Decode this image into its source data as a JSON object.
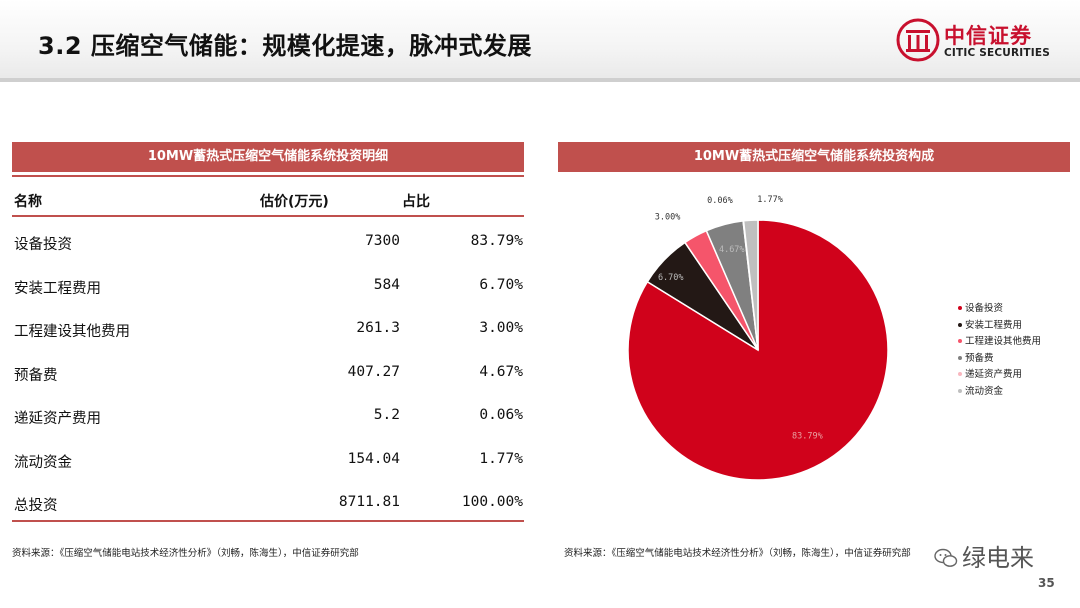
{
  "header": {
    "title": "3.2 压缩空气储能：规模化提速，脉冲式发展",
    "logo_cn": "中信证券",
    "logo_en": "CITIC SECURITIES"
  },
  "table": {
    "title": "10MW蓄热式压缩空气储能系统投资明细",
    "columns": [
      "名称",
      "估价(万元)",
      "占比"
    ],
    "rows": [
      {
        "name": "设备投资",
        "cost": "7300",
        "share": "83.79%"
      },
      {
        "name": "安装工程费用",
        "cost": "584",
        "share": "6.70%"
      },
      {
        "name": "工程建设其他费用",
        "cost": "261.3",
        "share": "3.00%"
      },
      {
        "name": "预备费",
        "cost": "407.27",
        "share": "4.67%"
      },
      {
        "name": "递延资产费用",
        "cost": "5.2",
        "share": "0.06%"
      },
      {
        "name": "流动资金",
        "cost": "154.04",
        "share": "1.77%"
      },
      {
        "name": "总投资",
        "cost": "8711.81",
        "share": "100.00%"
      }
    ],
    "source": "资料来源：《压缩空气储能电站技术经济性分析》（刘畅，陈海生），中信证券研究部"
  },
  "chart_data": {
    "type": "pie",
    "title": "10MW蓄热式压缩空气储能系统投资构成",
    "categories": [
      "设备投资",
      "安装工程费用",
      "工程建设其他费用",
      "预备费",
      "递延资产费用",
      "流动资金"
    ],
    "values": [
      83.79,
      6.7,
      3.0,
      4.67,
      0.06,
      1.77
    ],
    "value_labels": [
      "83.79%",
      "6.70%",
      "3.00%",
      "4.67%",
      "0.06%",
      "1.77%"
    ],
    "colors": [
      "#d0021b",
      "#231815",
      "#f5556b",
      "#808080",
      "#f9b7bf",
      "#bfbfbf"
    ],
    "legend_position": "right",
    "source": "资料来源：《压缩空气储能电站技术经济性分析》（刘畅，陈海生），中信证券研究部"
  },
  "footer": {
    "watermark": "绿电来",
    "page_number": "35"
  }
}
